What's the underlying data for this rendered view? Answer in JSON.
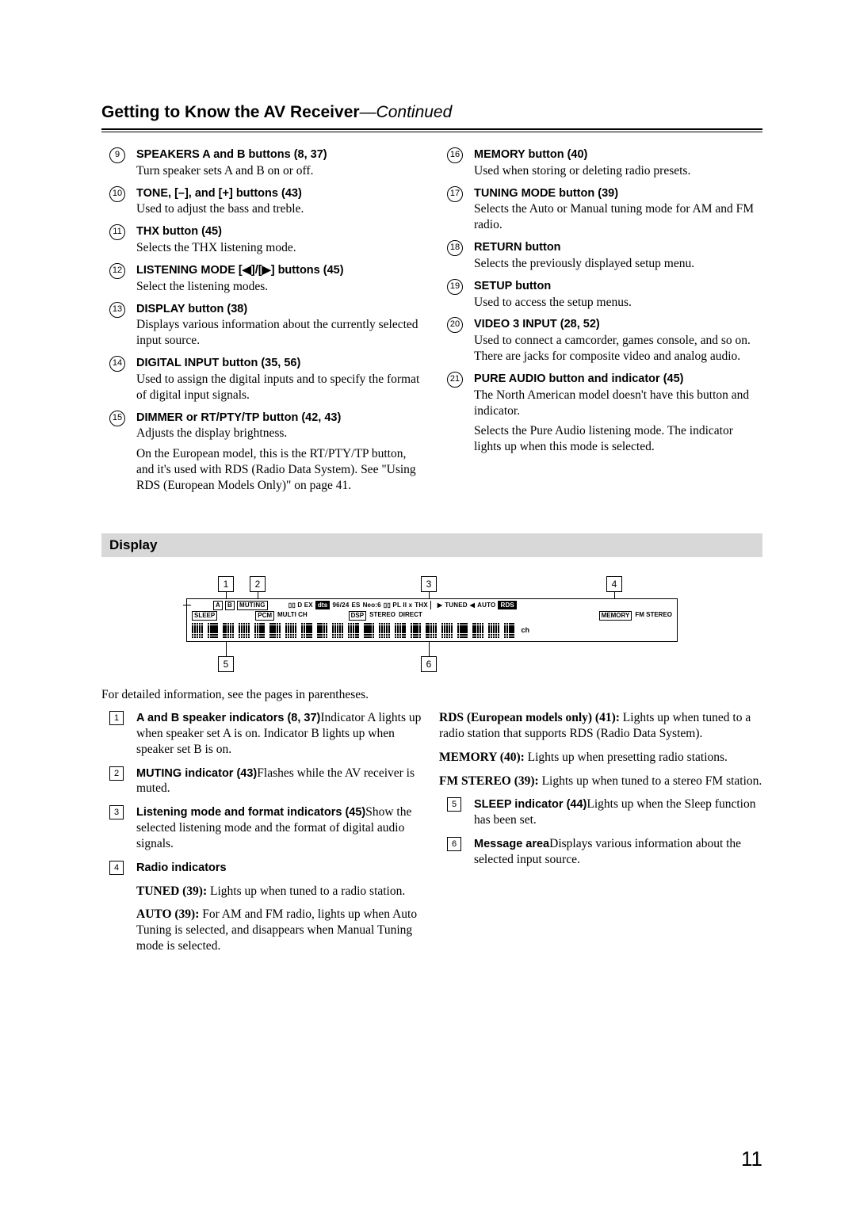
{
  "header": {
    "title": "Getting to Know the AV Receiver",
    "continued": "—Continued"
  },
  "left_items": [
    {
      "num": "9",
      "title": "SPEAKERS A and B buttons (8, 37)",
      "desc": "Turn speaker sets A and B on or off."
    },
    {
      "num": "10",
      "title": "TONE, [–], and [+] buttons (43)",
      "desc": "Used to adjust the bass and treble."
    },
    {
      "num": "11",
      "title": "THX button (45)",
      "desc": "Selects the THX listening mode."
    },
    {
      "num": "12",
      "title": "LISTENING MODE [◀]/[▶] buttons (45)",
      "desc": "Select the listening modes."
    },
    {
      "num": "13",
      "title": "DISPLAY button (38)",
      "desc": "Displays various information about the currently selected input source."
    },
    {
      "num": "14",
      "title": "DIGITAL INPUT button (35, 56)",
      "desc": "Used to assign the digital inputs and to specify the format of digital input signals."
    },
    {
      "num": "15",
      "title": "DIMMER or RT/PTY/TP button (42, 43)",
      "desc": "Adjusts the display brightness.",
      "desc2": "On the European model, this is the RT/PTY/TP button, and it's used with RDS (Radio Data System). See \"Using RDS (European Models Only)\" on page 41."
    }
  ],
  "right_items": [
    {
      "num": "16",
      "title": "MEMORY button (40)",
      "desc": "Used when storing or deleting radio presets."
    },
    {
      "num": "17",
      "title": "TUNING MODE button (39)",
      "desc": "Selects the Auto or Manual tuning mode for AM and FM radio."
    },
    {
      "num": "18",
      "title": "RETURN button",
      "desc": "Selects the previously displayed setup menu."
    },
    {
      "num": "19",
      "title": "SETUP button",
      "desc": "Used to access the setup menus."
    },
    {
      "num": "20",
      "title": "VIDEO 3 INPUT (28, 52)",
      "desc": "Used to connect a camcorder, games console, and so on. There are jacks for composite video and analog audio."
    },
    {
      "num": "21",
      "title": "PURE AUDIO button and indicator (45)",
      "desc": "The North American model doesn't have this button and indicator.",
      "desc2": "Selects the Pure Audio listening mode. The indicator lights up when this mode is selected."
    }
  ],
  "display_section": {
    "heading": "Display",
    "callouts_top": [
      "1",
      "2",
      "3",
      "4"
    ],
    "callouts_bottom": [
      "5",
      "6"
    ],
    "row1": {
      "a": "A",
      "b": "B",
      "muting": "MUTING",
      "dd": "▯▯ D EX",
      "dts": "dts",
      "r9624": "96/24",
      "es": "ES",
      "neo6": "Neo:6",
      "pl2x": "▯▯ PL II x",
      "thx": "THX",
      "tuned": "TUNED",
      "auto": "AUTO",
      "rds": "RDS"
    },
    "row2": {
      "sleep": "SLEEP",
      "pcm": "PCM",
      "multich": "MULTI CH",
      "dsp": "DSP",
      "stereo": "STEREO",
      "direct": "DIRECT",
      "memory": "MEMORY",
      "fmstereo": "FM STEREO"
    },
    "ch": "ch"
  },
  "display_intro": "For detailed information, see the pages in parentheses.",
  "display_left": [
    {
      "num": "1",
      "title": "A and B speaker indicators (8, 37)",
      "desc": "Indicator A lights up when speaker set A is on. Indicator B lights up when speaker set B is on."
    },
    {
      "num": "2",
      "title": "MUTING indicator (43)",
      "desc": "Flashes while the AV receiver is muted."
    },
    {
      "num": "3",
      "title": "Listening mode and format indicators (45)",
      "desc": "Show the selected listening mode and the format of digital audio signals."
    },
    {
      "num": "4",
      "title": "Radio indicators",
      "desc": ""
    }
  ],
  "radio_sub": [
    {
      "b": "TUNED (39):",
      "t": " Lights up when tuned to a radio station."
    },
    {
      "b": "AUTO (39):",
      "t": " For AM and FM radio, lights up when Auto Tuning is selected, and disappears when Manual Tuning mode is selected."
    }
  ],
  "display_right_sub": [
    {
      "b": "RDS (European models only) (41):",
      "t": " Lights up when tuned to a radio station that supports RDS (Radio Data System)."
    },
    {
      "b": "MEMORY (40):",
      "t": " Lights up when presetting radio stations."
    },
    {
      "b": "FM STEREO (39):",
      "t": " Lights up when tuned to a stereo FM station."
    }
  ],
  "display_right_items": [
    {
      "num": "5",
      "title": "SLEEP indicator (44)",
      "desc": "Lights up when the Sleep function has been set."
    },
    {
      "num": "6",
      "title": "Message area",
      "desc": "Displays various information about the selected input source."
    }
  ],
  "page_number": "11"
}
